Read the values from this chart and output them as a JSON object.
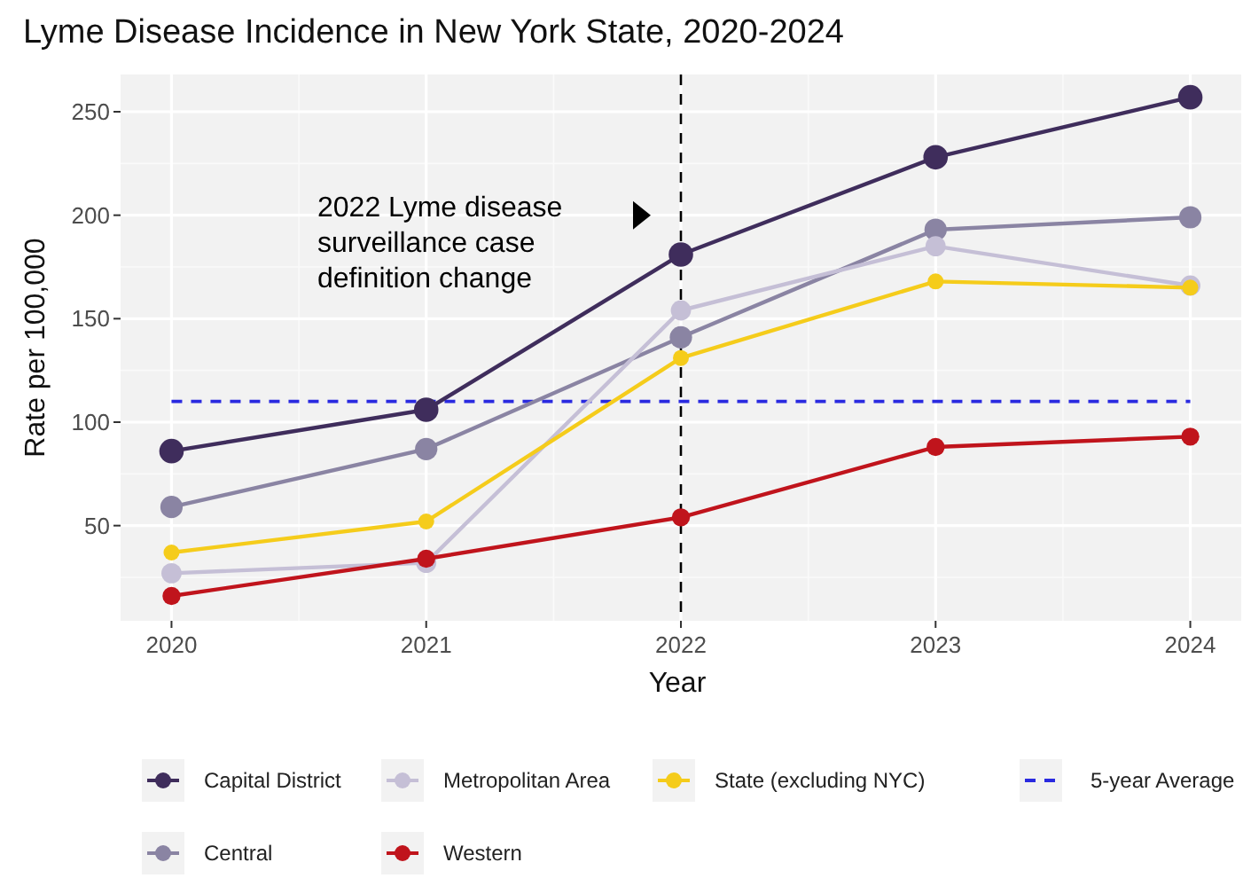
{
  "chart_data": {
    "type": "line",
    "title": "Lyme Disease Incidence in New York State, 2020-2024",
    "xlabel": "Year",
    "ylabel": "Rate per 100,000",
    "x": [
      2020,
      2021,
      2022,
      2023,
      2024
    ],
    "xlim": [
      2019.8,
      2024.2
    ],
    "xticks": [
      2020,
      2021,
      2022,
      2023,
      2024
    ],
    "ylim": [
      4,
      268
    ],
    "yticks": [
      50,
      100,
      150,
      200,
      250
    ],
    "series": [
      {
        "name": "Capital District",
        "color": "#3f2d5c",
        "values": [
          86,
          106,
          181,
          228,
          257
        ]
      },
      {
        "name": "Central",
        "color": "#8a84a3",
        "values": [
          59,
          87,
          141,
          193,
          199
        ]
      },
      {
        "name": "Metropolitan Area",
        "color": "#c5bfd6",
        "values": [
          27,
          32,
          154,
          185,
          166
        ]
      },
      {
        "name": "Western",
        "color": "#c0141c",
        "values": [
          16,
          34,
          54,
          88,
          93
        ]
      },
      {
        "name": "State (excluding NYC)",
        "color": "#f5cc1b",
        "values": [
          37,
          52,
          131,
          168,
          165
        ]
      }
    ],
    "ref_lines": [
      {
        "axis": "x",
        "value": 2022,
        "color": "#000000",
        "line_style": "dashed"
      },
      {
        "axis": "y",
        "value": 110,
        "label": "5-year Average",
        "color": "#2a2ae0",
        "line_style": "dashed"
      }
    ],
    "annotations": [
      "2022 Lyme disease\nsurveillance case\ndefinition change"
    ],
    "grid": true,
    "legend": "bottom",
    "marker": "circle",
    "line_style": "solid"
  }
}
